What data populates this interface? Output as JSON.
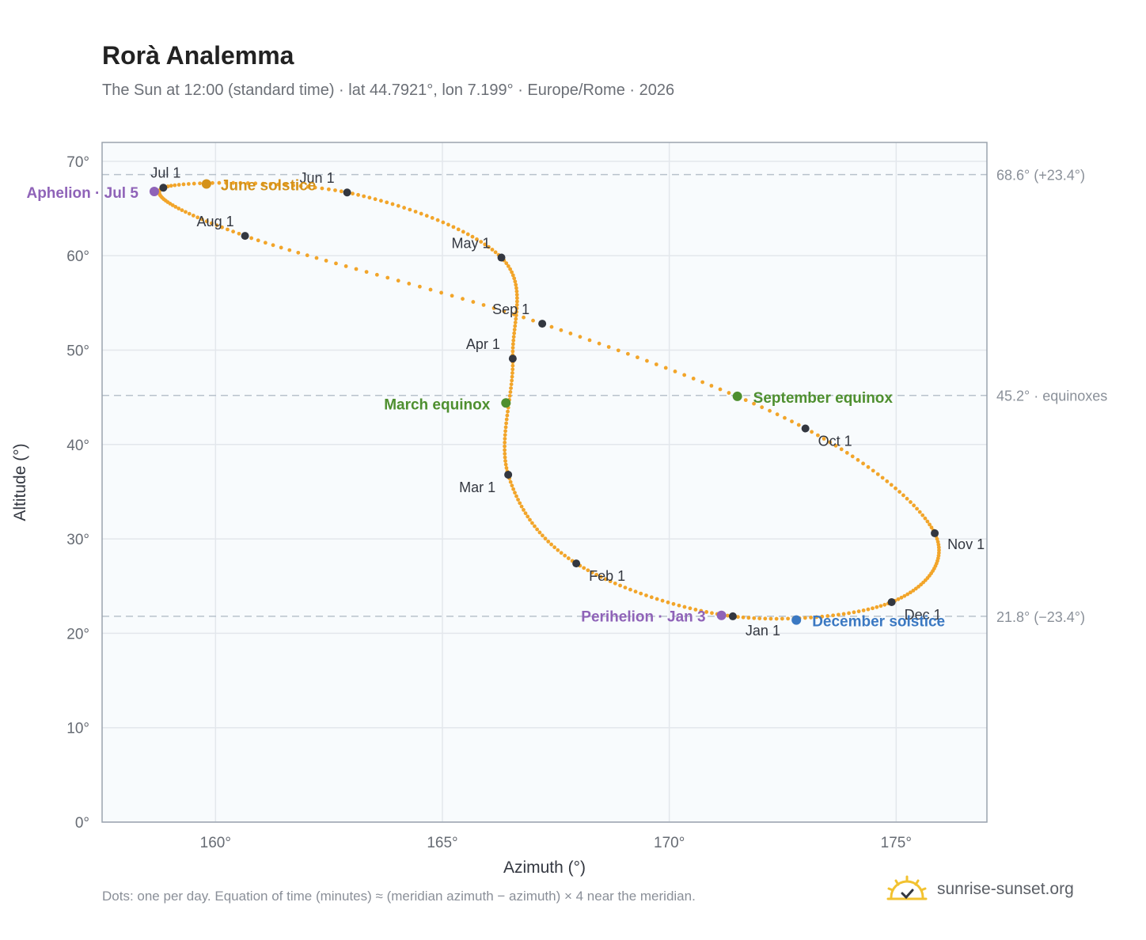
{
  "header": {
    "title": "Rorà Analemma",
    "subtitle": "The Sun at 12:00 (standard time) · lat 44.7921°, lon 7.199° · Europe/Rome · 2026"
  },
  "footer": {
    "note": "Dots: one per day. Equation of time (minutes) ≈ (meridian azimuth − azimuth) × 4 near the meridian.",
    "brand": "sunrise-sunset.org"
  },
  "colors": {
    "path": "#f2a52a",
    "month_marker": "#333740",
    "solstice_june": "#d4921a",
    "solstice_december": "#3a78c2",
    "equinox": "#4e8f2f",
    "apsis": "#8f63b8",
    "reference_line": "#b8c2cc",
    "plot_background": "#f8fbfd",
    "grid": "#e3e7ec",
    "axis_frame": "#9aa3ae"
  },
  "chart_data": {
    "type": "scatter",
    "xlabel": "Azimuth (°)",
    "ylabel": "Altitude (°)",
    "xlim": [
      157.5,
      177.0
    ],
    "ylim": [
      0,
      72
    ],
    "xticks": [
      {
        "value": 160,
        "label": "160°"
      },
      {
        "value": 165,
        "label": "165°"
      },
      {
        "value": 170,
        "label": "170°"
      },
      {
        "value": 175,
        "label": "175°"
      }
    ],
    "yticks": [
      {
        "value": 0,
        "label": "0°"
      },
      {
        "value": 10,
        "label": "10°"
      },
      {
        "value": 20,
        "label": "20°"
      },
      {
        "value": 30,
        "label": "30°"
      },
      {
        "value": 40,
        "label": "40°"
      },
      {
        "value": 50,
        "label": "50°"
      },
      {
        "value": 60,
        "label": "60°"
      },
      {
        "value": 70,
        "label": "70°"
      }
    ],
    "grid": true,
    "reference_lines": [
      {
        "altitude": 68.6,
        "label": "68.6° (+23.4°)"
      },
      {
        "altitude": 45.2,
        "label": "45.2° · equinoxes"
      },
      {
        "altitude": 21.8,
        "label": "21.8° (−23.4°)"
      }
    ],
    "daily_path_note": "one dot per day, 365 points",
    "month_points": [
      {
        "label": "Jan 1",
        "azimuth": 171.4,
        "altitude": 21.8
      },
      {
        "label": "Feb 1",
        "azimuth": 167.95,
        "altitude": 27.4
      },
      {
        "label": "Mar 1",
        "azimuth": 166.45,
        "altitude": 36.8
      },
      {
        "label": "Apr 1",
        "azimuth": 166.55,
        "altitude": 49.1
      },
      {
        "label": "May 1",
        "azimuth": 166.3,
        "altitude": 59.8
      },
      {
        "label": "Jun 1",
        "azimuth": 162.9,
        "altitude": 66.7
      },
      {
        "label": "Jul 1",
        "azimuth": 158.85,
        "altitude": 67.2
      },
      {
        "label": "Aug 1",
        "azimuth": 160.65,
        "altitude": 62.1
      },
      {
        "label": "Sep 1",
        "azimuth": 167.2,
        "altitude": 52.8
      },
      {
        "label": "Oct 1",
        "azimuth": 173.0,
        "altitude": 41.7
      },
      {
        "label": "Nov 1",
        "azimuth": 175.85,
        "altitude": 30.6
      },
      {
        "label": "Dec 1",
        "azimuth": 174.9,
        "altitude": 23.3
      }
    ],
    "events": [
      {
        "label": "June solstice",
        "azimuth": 159.8,
        "altitude": 67.6,
        "kind": "solstice_june"
      },
      {
        "label": "December solstice",
        "azimuth": 172.8,
        "altitude": 21.4,
        "kind": "solstice_december"
      },
      {
        "label": "March equinox",
        "azimuth": 166.4,
        "altitude": 44.4,
        "kind": "equinox"
      },
      {
        "label": "September equinox",
        "azimuth": 171.5,
        "altitude": 45.1,
        "kind": "equinox"
      },
      {
        "label": "Aphelion · Jul 5",
        "azimuth": 158.65,
        "altitude": 66.8,
        "kind": "apsis"
      },
      {
        "label": "Perihelion · Jan 3",
        "azimuth": 171.15,
        "altitude": 21.9,
        "kind": "apsis"
      }
    ]
  }
}
